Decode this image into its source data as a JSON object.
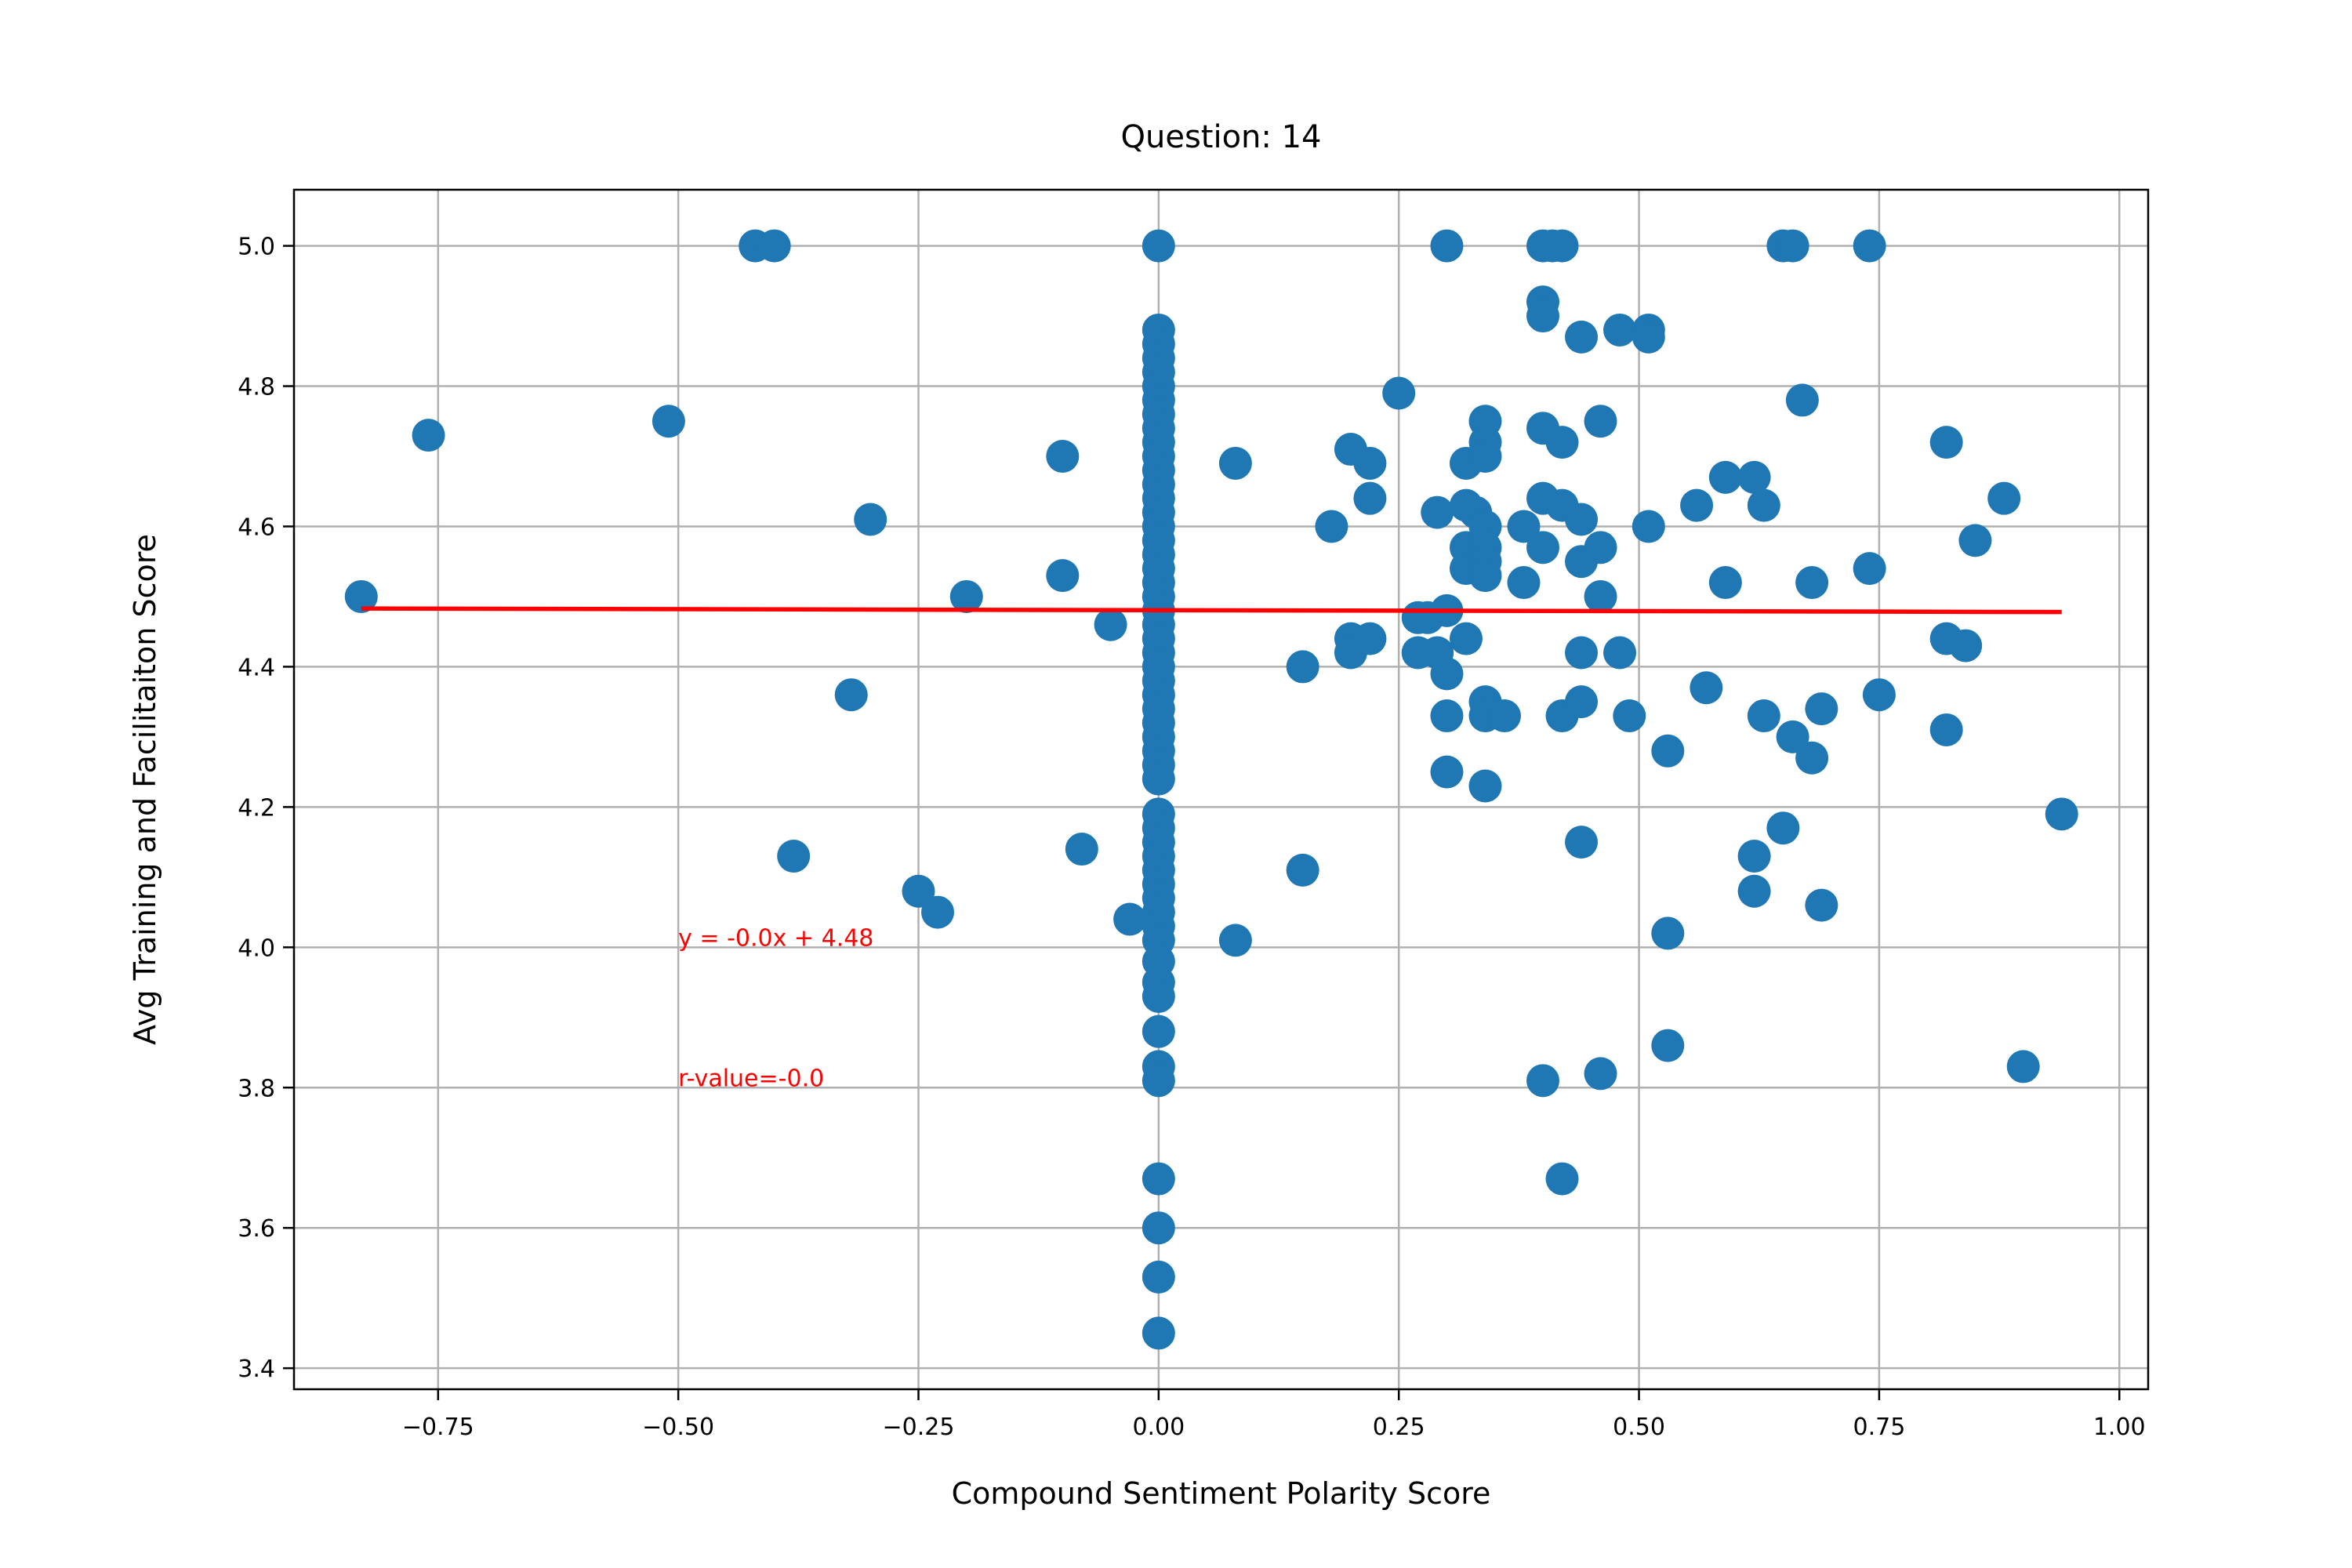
{
  "chart_data": {
    "type": "scatter",
    "title": "Question: 14",
    "xlabel": "Compound Sentiment Polarity Score",
    "ylabel": "Avg Training and Facilitaiton Score",
    "xlim": [
      -0.9,
      1.03
    ],
    "ylim": [
      3.37,
      5.08
    ],
    "xticks": [
      -0.75,
      -0.5,
      -0.25,
      0.0,
      0.25,
      0.5,
      0.75,
      1.0
    ],
    "xtick_labels": [
      "−0.75",
      "−0.50",
      "−0.25",
      "0.00",
      "0.25",
      "0.50",
      "0.75",
      "1.00"
    ],
    "yticks": [
      3.4,
      3.6,
      3.8,
      4.0,
      4.2,
      4.4,
      4.6,
      4.8,
      5.0
    ],
    "ytick_labels": [
      "3.4",
      "3.6",
      "3.8",
      "4.0",
      "4.2",
      "4.4",
      "4.6",
      "4.8",
      "5.0"
    ],
    "grid": true,
    "colors": {
      "points": "#1f77b4",
      "fit_line": "#ff0000",
      "grid": "#b0b0b0"
    },
    "points": [
      [
        -0.83,
        4.5
      ],
      [
        -0.76,
        4.73
      ],
      [
        -0.51,
        4.75
      ],
      [
        -0.42,
        5.0
      ],
      [
        -0.4,
        5.0
      ],
      [
        -0.38,
        4.13
      ],
      [
        -0.32,
        4.36
      ],
      [
        -0.3,
        4.61
      ],
      [
        -0.25,
        4.08
      ],
      [
        -0.23,
        4.05
      ],
      [
        -0.2,
        4.5
      ],
      [
        -0.1,
        4.7
      ],
      [
        -0.1,
        4.53
      ],
      [
        -0.08,
        4.14
      ],
      [
        -0.05,
        4.46
      ],
      [
        -0.03,
        4.04
      ],
      [
        0.0,
        5.0
      ],
      [
        0.0,
        4.88
      ],
      [
        0.0,
        4.86
      ],
      [
        0.0,
        4.84
      ],
      [
        0.0,
        4.82
      ],
      [
        0.0,
        4.8
      ],
      [
        0.0,
        4.78
      ],
      [
        0.0,
        4.76
      ],
      [
        0.0,
        4.74
      ],
      [
        0.0,
        4.72
      ],
      [
        0.0,
        4.7
      ],
      [
        0.0,
        4.68
      ],
      [
        0.0,
        4.66
      ],
      [
        0.0,
        4.64
      ],
      [
        0.0,
        4.62
      ],
      [
        0.0,
        4.6
      ],
      [
        0.0,
        4.58
      ],
      [
        0.0,
        4.56
      ],
      [
        0.0,
        4.54
      ],
      [
        0.0,
        4.52
      ],
      [
        0.0,
        4.5
      ],
      [
        0.0,
        4.48
      ],
      [
        0.0,
        4.46
      ],
      [
        0.0,
        4.44
      ],
      [
        0.0,
        4.42
      ],
      [
        0.0,
        4.4
      ],
      [
        0.0,
        4.38
      ],
      [
        0.0,
        4.36
      ],
      [
        0.0,
        4.34
      ],
      [
        0.0,
        4.32
      ],
      [
        0.0,
        4.3
      ],
      [
        0.0,
        4.28
      ],
      [
        0.0,
        4.26
      ],
      [
        0.0,
        4.24
      ],
      [
        0.0,
        4.19
      ],
      [
        0.0,
        4.17
      ],
      [
        0.0,
        4.15
      ],
      [
        0.0,
        4.13
      ],
      [
        0.0,
        4.11
      ],
      [
        0.0,
        4.09
      ],
      [
        0.0,
        4.07
      ],
      [
        0.0,
        4.05
      ],
      [
        0.0,
        4.03
      ],
      [
        0.0,
        4.01
      ],
      [
        0.0,
        3.98
      ],
      [
        0.0,
        3.95
      ],
      [
        0.0,
        3.93
      ],
      [
        0.0,
        3.88
      ],
      [
        0.0,
        3.83
      ],
      [
        0.0,
        3.81
      ],
      [
        0.0,
        3.67
      ],
      [
        0.0,
        3.6
      ],
      [
        0.0,
        3.53
      ],
      [
        0.0,
        3.45
      ],
      [
        0.08,
        4.69
      ],
      [
        0.08,
        4.01
      ],
      [
        0.15,
        4.4
      ],
      [
        0.15,
        4.11
      ],
      [
        0.18,
        4.6
      ],
      [
        0.2,
        4.71
      ],
      [
        0.2,
        4.44
      ],
      [
        0.2,
        4.42
      ],
      [
        0.22,
        4.69
      ],
      [
        0.22,
        4.64
      ],
      [
        0.22,
        4.44
      ],
      [
        0.25,
        4.79
      ],
      [
        0.27,
        4.47
      ],
      [
        0.27,
        4.42
      ],
      [
        0.28,
        4.47
      ],
      [
        0.29,
        4.42
      ],
      [
        0.29,
        4.62
      ],
      [
        0.3,
        4.48
      ],
      [
        0.3,
        4.39
      ],
      [
        0.3,
        4.33
      ],
      [
        0.3,
        4.25
      ],
      [
        0.3,
        5.0
      ],
      [
        0.32,
        4.69
      ],
      [
        0.32,
        4.63
      ],
      [
        0.32,
        4.57
      ],
      [
        0.32,
        4.54
      ],
      [
        0.32,
        4.44
      ],
      [
        0.33,
        4.62
      ],
      [
        0.34,
        4.75
      ],
      [
        0.34,
        4.72
      ],
      [
        0.34,
        4.7
      ],
      [
        0.34,
        4.6
      ],
      [
        0.34,
        4.57
      ],
      [
        0.34,
        4.55
      ],
      [
        0.34,
        4.53
      ],
      [
        0.34,
        4.35
      ],
      [
        0.34,
        4.33
      ],
      [
        0.34,
        4.23
      ],
      [
        0.36,
        4.33
      ],
      [
        0.38,
        4.52
      ],
      [
        0.38,
        4.6
      ],
      [
        0.4,
        5.0
      ],
      [
        0.4,
        4.92
      ],
      [
        0.4,
        4.9
      ],
      [
        0.4,
        4.74
      ],
      [
        0.4,
        4.64
      ],
      [
        0.4,
        4.57
      ],
      [
        0.4,
        3.81
      ],
      [
        0.41,
        5.0
      ],
      [
        0.42,
        4.72
      ],
      [
        0.42,
        4.63
      ],
      [
        0.42,
        4.33
      ],
      [
        0.42,
        3.67
      ],
      [
        0.42,
        5.0
      ],
      [
        0.44,
        4.87
      ],
      [
        0.44,
        4.61
      ],
      [
        0.44,
        4.55
      ],
      [
        0.44,
        4.42
      ],
      [
        0.44,
        4.35
      ],
      [
        0.44,
        4.15
      ],
      [
        0.46,
        4.75
      ],
      [
        0.46,
        4.57
      ],
      [
        0.46,
        4.5
      ],
      [
        0.46,
        3.82
      ],
      [
        0.48,
        4.88
      ],
      [
        0.48,
        4.42
      ],
      [
        0.49,
        4.33
      ],
      [
        0.51,
        4.88
      ],
      [
        0.51,
        4.87
      ],
      [
        0.51,
        4.6
      ],
      [
        0.53,
        4.28
      ],
      [
        0.53,
        4.02
      ],
      [
        0.53,
        3.86
      ],
      [
        0.56,
        4.63
      ],
      [
        0.57,
        4.37
      ],
      [
        0.59,
        4.67
      ],
      [
        0.59,
        4.52
      ],
      [
        0.62,
        4.67
      ],
      [
        0.62,
        4.13
      ],
      [
        0.62,
        4.08
      ],
      [
        0.63,
        4.63
      ],
      [
        0.63,
        4.33
      ],
      [
        0.65,
        5.0
      ],
      [
        0.65,
        4.17
      ],
      [
        0.66,
        5.0
      ],
      [
        0.66,
        4.3
      ],
      [
        0.67,
        4.78
      ],
      [
        0.68,
        4.52
      ],
      [
        0.68,
        4.27
      ],
      [
        0.69,
        4.34
      ],
      [
        0.69,
        4.06
      ],
      [
        0.74,
        5.0
      ],
      [
        0.74,
        4.54
      ],
      [
        0.75,
        4.36
      ],
      [
        0.82,
        4.72
      ],
      [
        0.82,
        4.44
      ],
      [
        0.82,
        4.31
      ],
      [
        0.84,
        4.43
      ],
      [
        0.85,
        4.58
      ],
      [
        0.88,
        4.64
      ],
      [
        0.9,
        3.83
      ],
      [
        0.94,
        4.19
      ]
    ],
    "fit_line": {
      "x": [
        -0.83,
        0.94
      ],
      "y": [
        4.483,
        4.478
      ]
    },
    "annotations": [
      {
        "text": "y = -0.0x + 4.48",
        "x": -0.5,
        "y": 4.0
      },
      {
        "text": "r-value=-0.0",
        "x": -0.5,
        "y": 3.8
      }
    ]
  }
}
